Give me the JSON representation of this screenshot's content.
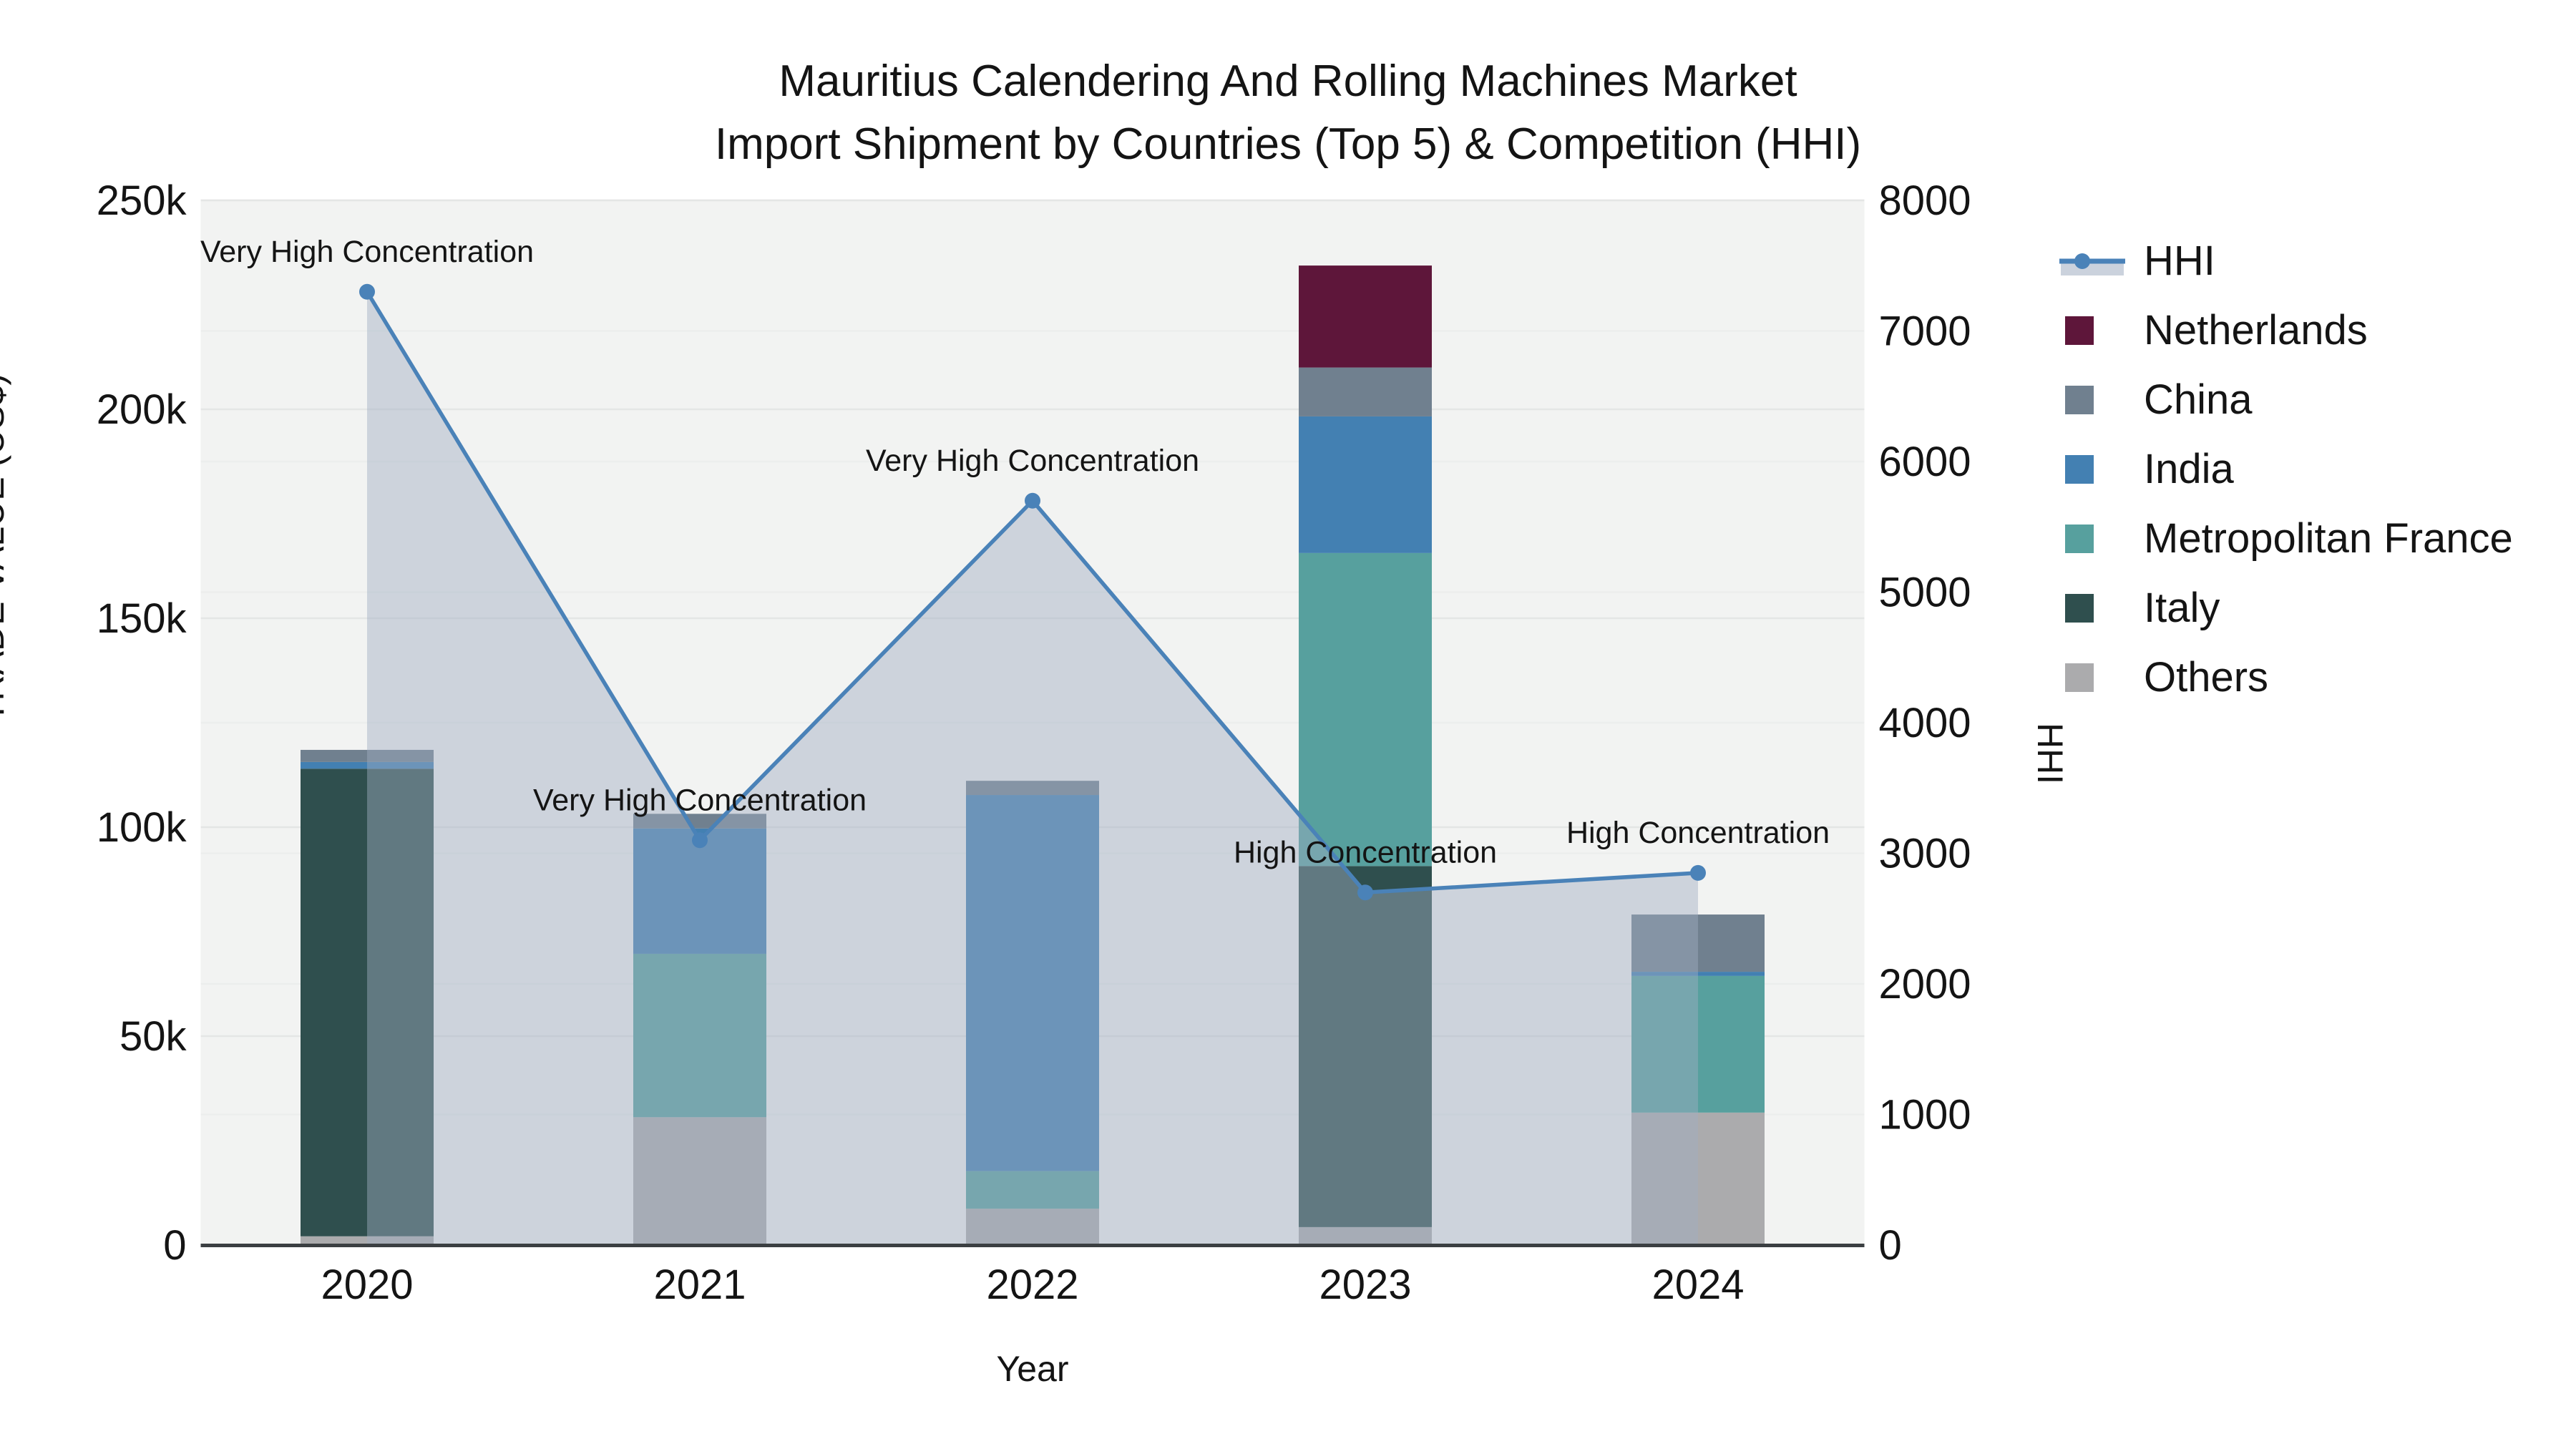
{
  "title": {
    "line1": "Mauritius Calendering And Rolling Machines Market",
    "line2": "Import Shipment by Countries (Top 5) & Competition (HHI)"
  },
  "axes": {
    "x_title": "Year",
    "y_left_title": "TRADE VALUE (US$)",
    "y_right_title": "HHI",
    "y_left_ticks": [
      "0",
      "50k",
      "100k",
      "150k",
      "200k",
      "250k"
    ],
    "y_right_ticks": [
      "0",
      "1000",
      "2000",
      "3000",
      "4000",
      "5000",
      "6000",
      "7000",
      "8000"
    ]
  },
  "legend": {
    "items": [
      {
        "label": "HHI",
        "type": "line"
      },
      {
        "label": "Netherlands",
        "type": "square",
        "color": "#5e163a"
      },
      {
        "label": "China",
        "type": "square",
        "color": "#70808f"
      },
      {
        "label": "India",
        "type": "square",
        "color": "#4380b2"
      },
      {
        "label": "Metropolitan France",
        "type": "square",
        "color": "#57a09e"
      },
      {
        "label": "Italy",
        "type": "square",
        "color": "#2f4f4e"
      },
      {
        "label": "Others",
        "type": "square",
        "color": "#ababad"
      }
    ]
  },
  "chart_data": {
    "type": "combo-stacked-bar-line",
    "categories": [
      "2020",
      "2021",
      "2022",
      "2023",
      "2024"
    ],
    "bar_unit": "US$",
    "stack_order_bottom_to_top": [
      "Others",
      "Italy",
      "Metropolitan France",
      "India",
      "China",
      "Netherlands"
    ],
    "series": [
      {
        "name": "Netherlands",
        "color": "#5e163a",
        "values": [
          0,
          0,
          0,
          24400,
          0
        ]
      },
      {
        "name": "China",
        "color": "#70808f",
        "values": [
          2900,
          3500,
          3400,
          11700,
          13700
        ]
      },
      {
        "name": "India",
        "color": "#4380b2",
        "values": [
          1600,
          30000,
          90000,
          32700,
          1000
        ]
      },
      {
        "name": "Metropolitan France",
        "color": "#57a09e",
        "values": [
          0,
          39100,
          9000,
          74900,
          32700
        ]
      },
      {
        "name": "Italy",
        "color": "#2f4f4e",
        "values": [
          111900,
          0,
          0,
          86400,
          0
        ]
      },
      {
        "name": "Others",
        "color": "#ababad",
        "values": [
          2100,
          30600,
          8700,
          4300,
          31700
        ]
      }
    ],
    "bar_totals": [
      118500,
      103200,
      111100,
      234400,
      79100
    ],
    "line_series": {
      "name": "HHI",
      "color": "#4a82b8",
      "area_fill": "rgba(160,173,193,0.45)",
      "values": [
        7300,
        3100,
        5700,
        2700,
        2850
      ]
    },
    "annotations": [
      {
        "x": "2020",
        "text": "Very High Concentration"
      },
      {
        "x": "2021",
        "text": "Very High Concentration"
      },
      {
        "x": "2022",
        "text": "Very High Concentration"
      },
      {
        "x": "2023",
        "text": "High Concentration"
      },
      {
        "x": "2024",
        "text": "High Concentration"
      }
    ],
    "xlabel": "Year",
    "ylabel_left": "TRADE VALUE (US$)",
    "ylabel_right": "HHI",
    "ylim_left": [
      0,
      250000
    ],
    "ylim_right": [
      0,
      8000
    ],
    "grid": true,
    "legend_position": "right",
    "plot_bg": "#f2f3f2",
    "grid_color_major": "#e4e6e5",
    "grid_color_minor": "#eceeed",
    "axis_line_color": "#3b3f42",
    "text_color": "#141414"
  }
}
